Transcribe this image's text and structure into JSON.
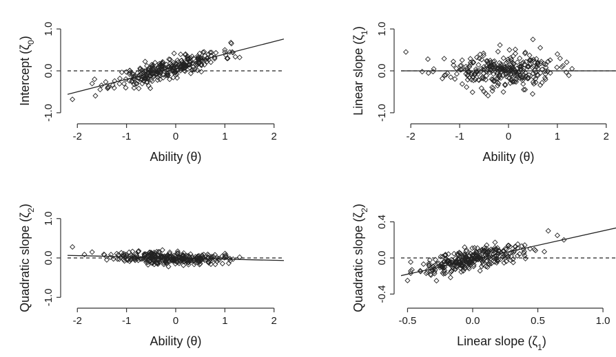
{
  "chart_data": [
    {
      "id": "intercept-vs-ability",
      "type": "scatter",
      "xlabel": "Ability",
      "xlabel_symbol": "(θ)",
      "ylabel": "Intercept",
      "ylabel_symbol": "(ζ",
      "ylabel_subscript": "0",
      "ylabel_close": ")",
      "xlim": [
        -2.2,
        2.2
      ],
      "ylim": [
        -1.1,
        1.1
      ],
      "xticks": [
        -2,
        -1,
        0,
        1,
        2
      ],
      "xtick_labels": [
        "-2",
        "-1",
        "0",
        "1",
        "2"
      ],
      "yticks": [
        -1,
        0,
        1
      ],
      "ytick_labels": [
        "-1.0",
        "0.0",
        "1.0"
      ],
      "reference_line_y": 0,
      "fit_line": {
        "slope": 0.3,
        "intercept": 0.1
      },
      "generator": {
        "seed": 11,
        "x_mean": -0.15,
        "x_sd": 0.55,
        "n": 300,
        "y_slope": 0.3,
        "y_intercept": 0.1,
        "y_sd": 0.12
      },
      "fixed_points": [
        {
          "x": -2.1,
          "y": -0.68
        },
        {
          "x": -1.65,
          "y": -0.2
        },
        {
          "x": 1.0,
          "y": 0.5
        },
        {
          "x": 1.3,
          "y": 0.32
        },
        {
          "x": 1.15,
          "y": 0.45
        }
      ]
    },
    {
      "id": "linear-slope-vs-ability",
      "type": "scatter",
      "xlabel": "Ability",
      "xlabel_symbol": "(θ)",
      "ylabel": "Linear slope",
      "ylabel_symbol": "(ζ",
      "ylabel_subscript": "1",
      "ylabel_close": ")",
      "xlim": [
        -2.2,
        2.2
      ],
      "ylim": [
        -1.1,
        1.1
      ],
      "xticks": [
        -2,
        -1,
        0,
        1,
        2
      ],
      "xtick_labels": [
        "-2",
        "-1",
        "0",
        "1",
        "2"
      ],
      "yticks": [
        -1,
        0,
        1
      ],
      "ytick_labels": [
        "-1.0",
        "0.0",
        "1.0"
      ],
      "reference_line_y": 0,
      "fit_line": {
        "slope": 0.0,
        "intercept": 0.0
      },
      "generator": {
        "seed": 23,
        "x_mean": -0.15,
        "x_sd": 0.55,
        "n": 300,
        "y_slope": 0.0,
        "y_intercept": 0.0,
        "y_sd": 0.2
      },
      "fixed_points": [
        {
          "x": -2.1,
          "y": 0.45
        },
        {
          "x": -1.65,
          "y": 0.28
        },
        {
          "x": 0.5,
          "y": 0.75
        },
        {
          "x": 0.65,
          "y": 0.55
        },
        {
          "x": 1.0,
          "y": 0.4
        },
        {
          "x": 1.3,
          "y": 0.05
        }
      ]
    },
    {
      "id": "quadratic-slope-vs-ability",
      "type": "scatter",
      "xlabel": "Ability",
      "xlabel_symbol": "(θ)",
      "ylabel": "Quadratic slope",
      "ylabel_symbol": "(ζ",
      "ylabel_subscript": "2",
      "ylabel_close": ")",
      "xlim": [
        -2.2,
        2.2
      ],
      "ylim": [
        -1.1,
        1.1
      ],
      "xticks": [
        -2,
        -1,
        0,
        1,
        2
      ],
      "xtick_labels": [
        "-2",
        "-1",
        "0",
        "1",
        "2"
      ],
      "yticks": [
        -1,
        0,
        1
      ],
      "ytick_labels": [
        "-1.0",
        "0.0",
        "1.0"
      ],
      "reference_line_y": 0,
      "fit_line": {
        "slope": -0.03,
        "intercept": 0.0
      },
      "generator": {
        "seed": 37,
        "x_mean": -0.15,
        "x_sd": 0.55,
        "n": 300,
        "y_slope": -0.03,
        "y_intercept": 0.0,
        "y_sd": 0.08
      },
      "fixed_points": [
        {
          "x": -2.1,
          "y": 0.28
        },
        {
          "x": -1.7,
          "y": 0.15
        },
        {
          "x": 1.0,
          "y": 0.05
        },
        {
          "x": 1.3,
          "y": 0.02
        }
      ]
    },
    {
      "id": "quadratic-slope-vs-linear-slope",
      "type": "scatter",
      "xlabel": "Linear slope",
      "xlabel_symbol": "(ζ",
      "xlabel_subscript": "1",
      "xlabel_close": ")",
      "ylabel": "Quadratic slope",
      "ylabel_symbol": "(ζ",
      "ylabel_subscript": "2",
      "ylabel_close": ")",
      "xlim": [
        -0.55,
        1.1
      ],
      "ylim": [
        -0.48,
        0.48
      ],
      "xticks": [
        -0.5,
        0.0,
        0.5,
        1.0
      ],
      "xtick_labels": [
        "-0.5",
        "0.0",
        "0.5",
        "1.0"
      ],
      "yticks": [
        -0.4,
        0.0,
        0.4
      ],
      "ytick_labels": [
        "-0.4",
        "0.0",
        "0.4"
      ],
      "reference_line_y": 0,
      "fit_line": {
        "slope": 0.32,
        "intercept": -0.02
      },
      "generator": {
        "seed": 51,
        "x_mean": 0.0,
        "x_sd": 0.2,
        "n": 300,
        "y_slope": 0.3,
        "y_intercept": -0.02,
        "y_sd": 0.06
      },
      "fixed_points": [
        {
          "x": -0.5,
          "y": -0.25
        },
        {
          "x": -0.4,
          "y": -0.15
        },
        {
          "x": 0.58,
          "y": 0.3
        },
        {
          "x": 0.65,
          "y": 0.25
        },
        {
          "x": 0.7,
          "y": 0.2
        },
        {
          "x": 0.55,
          "y": 0.07
        }
      ]
    }
  ]
}
